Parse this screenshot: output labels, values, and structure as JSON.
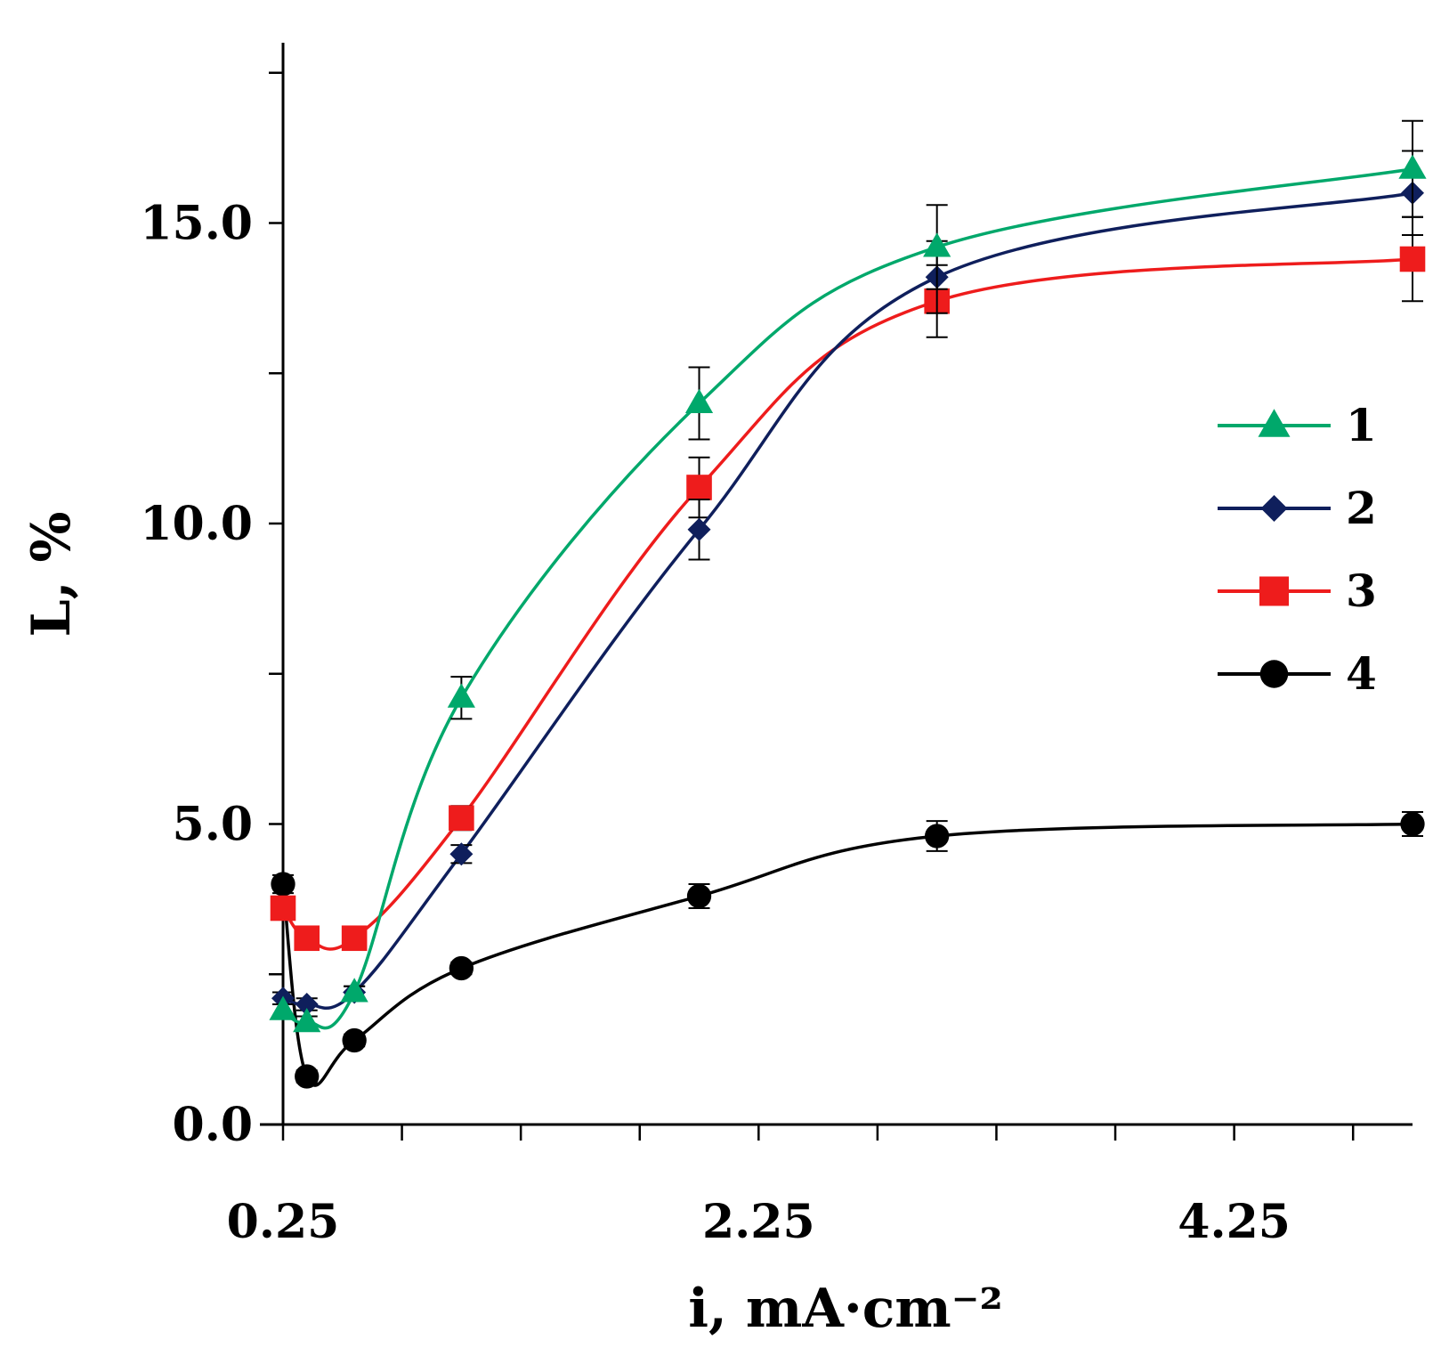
{
  "chart_data": {
    "type": "line",
    "xlabel": "i, mA·cm⁻²",
    "ylabel": "L, %",
    "xlim": [
      0.25,
      5.0
    ],
    "ylim": [
      0.0,
      18.0
    ],
    "x_ticks": [
      0.25,
      2.25,
      4.25
    ],
    "x_tick_labels": [
      "0.25",
      "2.25",
      "4.25"
    ],
    "x_minor_step": 0.5,
    "y_ticks": [
      0.0,
      5.0,
      10.0,
      15.0
    ],
    "y_tick_labels": [
      "0.0",
      "5.0",
      "10.0",
      "15.0"
    ],
    "y_minor_step": 2.5,
    "legend_position": "right-middle",
    "series": [
      {
        "name": "1",
        "color": "#00a86b",
        "marker": "triangle",
        "x": [
          0.25,
          0.35,
          0.55,
          1.0,
          2.0,
          3.0,
          5.0
        ],
        "y": [
          1.9,
          1.7,
          2.2,
          7.1,
          12.0,
          14.6,
          15.9
        ],
        "err": [
          0.1,
          0.1,
          0.1,
          0.35,
          0.6,
          0.7,
          0.8
        ]
      },
      {
        "name": "2",
        "color": "#0f1f5c",
        "marker": "diamond",
        "x": [
          0.25,
          0.35,
          0.55,
          1.0,
          2.0,
          3.0,
          5.0
        ],
        "y": [
          2.1,
          2.0,
          2.2,
          4.5,
          9.9,
          14.1,
          15.5
        ],
        "err": [
          0.1,
          0.1,
          0.1,
          0.15,
          0.5,
          0.6,
          0.7
        ]
      },
      {
        "name": "3",
        "color": "#ee1c1c",
        "marker": "square",
        "x": [
          0.25,
          0.35,
          0.55,
          1.0,
          2.0,
          3.0,
          5.0
        ],
        "y": [
          3.6,
          3.1,
          3.1,
          5.1,
          10.6,
          13.7,
          14.4
        ],
        "err": [
          0.1,
          0.1,
          0.1,
          0.2,
          0.5,
          0.6,
          0.7
        ]
      },
      {
        "name": "4",
        "color": "#000000",
        "marker": "circle",
        "x": [
          0.25,
          0.35,
          0.55,
          1.0,
          2.0,
          3.0,
          5.0
        ],
        "y": [
          4.0,
          0.8,
          1.4,
          2.6,
          3.8,
          4.8,
          5.0
        ],
        "err": [
          0.15,
          0.1,
          0.1,
          0.1,
          0.2,
          0.25,
          0.2
        ]
      }
    ]
  }
}
